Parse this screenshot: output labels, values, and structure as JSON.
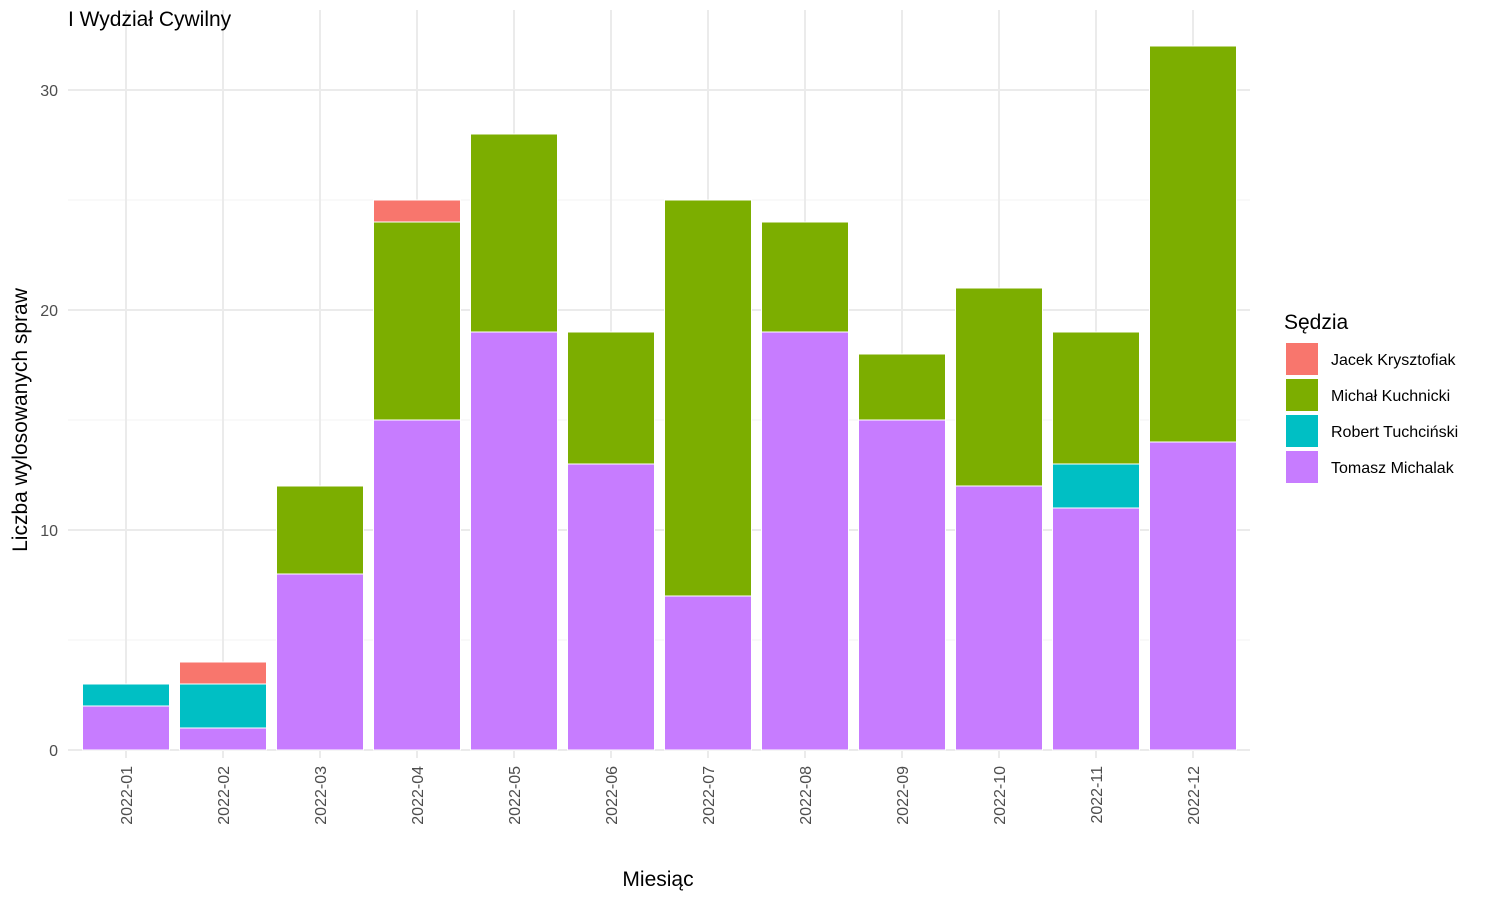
{
  "chart_data": {
    "type": "bar",
    "stacked": true,
    "title": "I Wydział Cywilny",
    "xlabel": "Miesiąc",
    "ylabel": "Liczba wylosowanych spraw",
    "ylim": [
      0,
      32
    ],
    "y_ticks": [
      0,
      10,
      20,
      30
    ],
    "grid": true,
    "legend_position": "right",
    "legend_title": "Sędzia",
    "categories": [
      "2022-01",
      "2022-02",
      "2022-03",
      "2022-04",
      "2022-05",
      "2022-06",
      "2022-07",
      "2022-08",
      "2022-09",
      "2022-10",
      "2022-11",
      "2022-12"
    ],
    "series": [
      {
        "name": "Jacek Krysztofiak",
        "color": "#F8766D",
        "values": [
          0,
          1,
          0,
          1,
          0,
          0,
          0,
          0,
          0,
          0,
          0,
          0
        ]
      },
      {
        "name": "Michał Kuchnicki",
        "color": "#7CAE00",
        "values": [
          0,
          0,
          4,
          9,
          9,
          6,
          18,
          5,
          3,
          9,
          6,
          18
        ]
      },
      {
        "name": "Robert Tuchciński",
        "color": "#00BFC4",
        "values": [
          1,
          2,
          0,
          0,
          0,
          0,
          0,
          0,
          0,
          0,
          2,
          0
        ]
      },
      {
        "name": "Tomasz Michalak",
        "color": "#C77CFF",
        "values": [
          2,
          1,
          8,
          15,
          19,
          13,
          7,
          19,
          15,
          12,
          11,
          14
        ]
      }
    ]
  }
}
